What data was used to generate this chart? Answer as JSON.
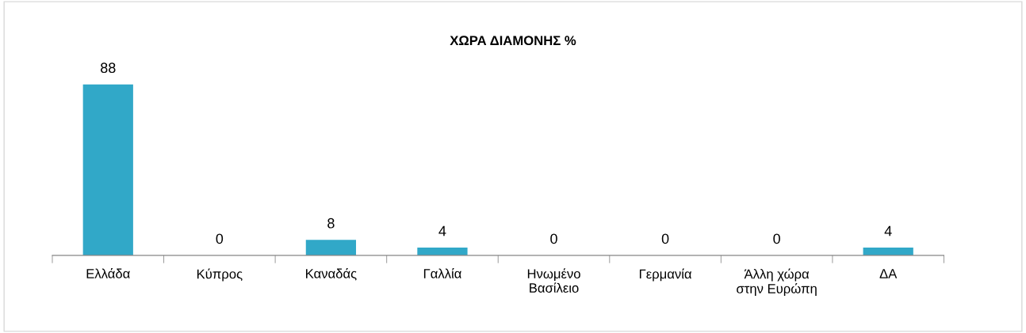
{
  "chart_data": {
    "type": "bar",
    "title": "ΧΩΡΑ ΔΙΑΜΟΝΗΣ %",
    "categories": [
      "Ελλάδα",
      "Κύπρος",
      "Καναδάς",
      "Γαλλία",
      "Ηνωμένο\nΒασίλειο",
      "Γερμανία",
      "Άλλη χώρα\nστην Ευρώπη",
      "ΔΑ"
    ],
    "values": [
      88,
      0,
      8,
      4,
      0,
      0,
      0,
      4
    ],
    "color": "#31a8c8",
    "data_labels": true,
    "tick_labels": "x",
    "grid": false,
    "legend": false
  }
}
